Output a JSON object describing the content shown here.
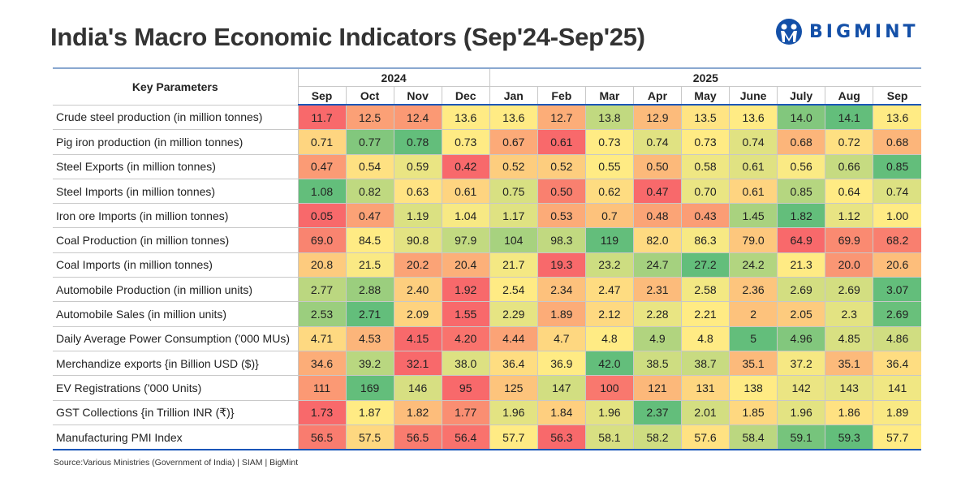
{
  "title": "India's Macro Economic Indicators (Sep'24-Sep'25)",
  "logo": {
    "text": "BIGMINT",
    "color": "#1450a8"
  },
  "source": "Source:Various Ministries (Government of India) | SIAM | BigMint",
  "colors": {
    "low": "#f8696b",
    "mid": "#ffeb84",
    "high": "#63be7b",
    "accent": "#1a56b8"
  },
  "chart_data": {
    "type": "heatmap",
    "title": "India's Macro Economic Indicators (Sep'24-Sep'25)",
    "row_header": "Key Parameters",
    "color_scale": "per-row red (low) - yellow (mid) - green (high)",
    "years": [
      {
        "label": "2024",
        "span": 4
      },
      {
        "label": "2025",
        "span": 9
      }
    ],
    "columns": [
      "Sep",
      "Oct",
      "Nov",
      "Dec",
      "Jan",
      "Feb",
      "Mar",
      "Apr",
      "May",
      "June",
      "July",
      "Aug",
      "Sep"
    ],
    "rows": [
      {
        "label": "Crude steel production (in million tonnes)",
        "values": [
          "11.7",
          "12.5",
          "12.4",
          "13.6",
          "13.6",
          "12.7",
          "13.8",
          "12.9",
          "13.5",
          "13.6",
          "14.0",
          "14.1",
          "13.6"
        ]
      },
      {
        "label": "Pig iron production (in million tonnes)",
        "values": [
          "0.71",
          "0.77",
          "0.78",
          "0.73",
          "0.67",
          "0.61",
          "0.73",
          "0.74",
          "0.73",
          "0.74",
          "0.68",
          "0.72",
          "0.68"
        ]
      },
      {
        "label": "Steel Exports (in million tonnes)",
        "values": [
          "0.47",
          "0.54",
          "0.59",
          "0.42",
          "0.52",
          "0.52",
          "0.55",
          "0.50",
          "0.58",
          "0.61",
          "0.56",
          "0.66",
          "0.85"
        ]
      },
      {
        "label": "Steel Imports (in million tonnes)",
        "values": [
          "1.08",
          "0.82",
          "0.63",
          "0.61",
          "0.75",
          "0.50",
          "0.62",
          "0.47",
          "0.70",
          "0.61",
          "0.85",
          "0.64",
          "0.74"
        ]
      },
      {
        "label": "Iron ore Imports (in million tonnes)",
        "values": [
          "0.05",
          "0.47",
          "1.19",
          "1.04",
          "1.17",
          "0.53",
          "0.7",
          "0.48",
          "0.43",
          "1.45",
          "1.82",
          "1.12",
          "1.00"
        ]
      },
      {
        "label": "Coal Production (in million tonnes)",
        "values": [
          "69.0",
          "84.5",
          "90.8",
          "97.9",
          "104",
          "98.3",
          "119",
          "82.0",
          "86.3",
          "79.0",
          "64.9",
          "69.9",
          "68.2"
        ]
      },
      {
        "label": "Coal Imports (in million tonnes)",
        "values": [
          "20.8",
          "21.5",
          "20.2",
          "20.4",
          "21.7",
          "19.3",
          "23.2",
          "24.7",
          "27.2",
          "24.2",
          "21.3",
          "20.0",
          "20.6"
        ]
      },
      {
        "label": "Automobile Production (in million units)",
        "values": [
          "2.77",
          "2.88",
          "2.40",
          "1.92",
          "2.54",
          "2.34",
          "2.47",
          "2.31",
          "2.58",
          "2.36",
          "2.69",
          "2.69",
          "3.07"
        ]
      },
      {
        "label": "Automobile Sales (in million units)",
        "values": [
          "2.53",
          "2.71",
          "2.09",
          "1.55",
          "2.29",
          "1.89",
          "2.12",
          "2.28",
          "2.21",
          "2",
          "2.05",
          "2.3",
          "2.69"
        ]
      },
      {
        "label": "Daily Average Power Consumption ('000 MUs)",
        "values": [
          "4.71",
          "4.53",
          "4.15",
          "4.20",
          "4.44",
          "4.7",
          "4.8",
          "4.9",
          "4.8",
          "5",
          "4.96",
          "4.85",
          "4.86"
        ]
      },
      {
        "label": "Merchandize exports {in Billion USD ($)}",
        "values": [
          "34.6",
          "39.2",
          "32.1",
          "38.0",
          "36.4",
          "36.9",
          "42.0",
          "38.5",
          "38.7",
          "35.1",
          "37.2",
          "35.1",
          "36.4"
        ]
      },
      {
        "label": "EV Registrations ('000 Units)",
        "values": [
          "111",
          "169",
          "146",
          "95",
          "125",
          "147",
          "100",
          "121",
          "131",
          "138",
          "142",
          "143",
          "141"
        ]
      },
      {
        "label": "GST Collections {in Trillion INR (₹)}",
        "values": [
          "1.73",
          "1.87",
          "1.82",
          "1.77",
          "1.96",
          "1.84",
          "1.96",
          "2.37",
          "2.01",
          "1.85",
          "1.96",
          "1.86",
          "1.89"
        ]
      },
      {
        "label": "Manufacturing PMI Index",
        "values": [
          "56.5",
          "57.5",
          "56.5",
          "56.4",
          "57.7",
          "56.3",
          "58.1",
          "58.2",
          "57.6",
          "58.4",
          "59.1",
          "59.3",
          "57.7"
        ]
      }
    ]
  }
}
